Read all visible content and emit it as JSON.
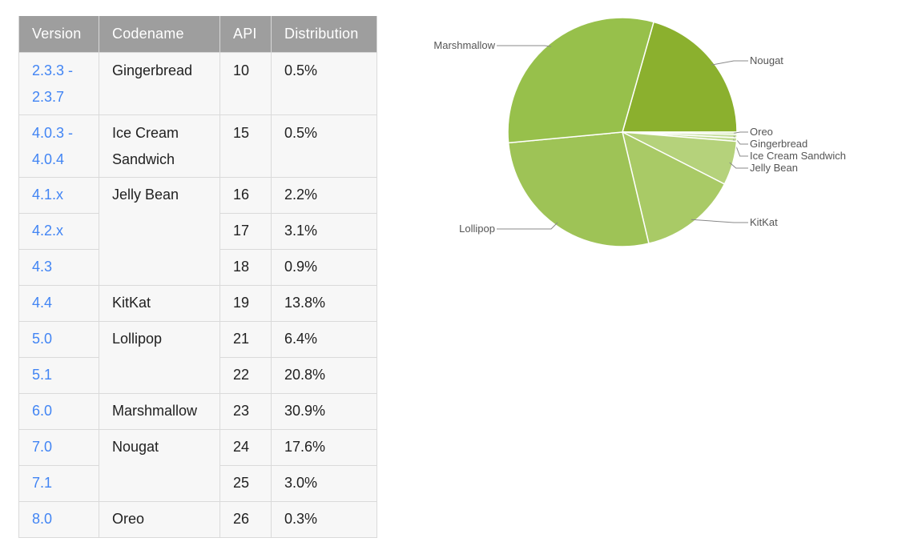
{
  "table": {
    "headers": [
      "Version",
      "Codename",
      "API",
      "Distribution"
    ],
    "rows": [
      {
        "version": "2.3.3 -\n2.3.7",
        "codename": "Gingerbread",
        "api": "10",
        "distribution": "0.5%"
      },
      {
        "version": "4.0.3 -\n4.0.4",
        "codename": "Ice Cream\nSandwich",
        "api": "15",
        "distribution": "0.5%"
      },
      {
        "version": "4.1.x",
        "codename": "Jelly Bean",
        "api": "16",
        "distribution": "2.2%"
      },
      {
        "version": "4.2.x",
        "codename": "",
        "api": "17",
        "distribution": "3.1%"
      },
      {
        "version": "4.3",
        "codename": "",
        "api": "18",
        "distribution": "0.9%"
      },
      {
        "version": "4.4",
        "codename": "KitKat",
        "api": "19",
        "distribution": "13.8%"
      },
      {
        "version": "5.0",
        "codename": "Lollipop",
        "api": "21",
        "distribution": "6.4%"
      },
      {
        "version": "5.1",
        "codename": "",
        "api": "22",
        "distribution": "20.8%"
      },
      {
        "version": "6.0",
        "codename": "Marshmallow",
        "api": "23",
        "distribution": "30.9%"
      },
      {
        "version": "7.0",
        "codename": "Nougat",
        "api": "24",
        "distribution": "17.6%"
      },
      {
        "version": "7.1",
        "codename": "",
        "api": "25",
        "distribution": "3.0%"
      },
      {
        "version": "8.0",
        "codename": "Oreo",
        "api": "26",
        "distribution": "0.3%"
      }
    ]
  },
  "chart_data": {
    "type": "pie",
    "title": "",
    "slices": [
      {
        "label": "Nougat",
        "value": 20.6,
        "color": "#8bb02e"
      },
      {
        "label": "Oreo",
        "value": 0.3,
        "color": "#c9e0a3"
      },
      {
        "label": "Gingerbread",
        "value": 0.5,
        "color": "#c9e0a3"
      },
      {
        "label": "Ice Cream Sandwich",
        "value": 0.5,
        "color": "#c2dc95"
      },
      {
        "label": "Jelly Bean",
        "value": 6.2,
        "color": "#b5d27b"
      },
      {
        "label": "KitKat",
        "value": 13.8,
        "color": "#a9ca66"
      },
      {
        "label": "Lollipop",
        "value": 27.2,
        "color": "#9ec356"
      },
      {
        "label": "Marshmallow",
        "value": 30.9,
        "color": "#97c04b"
      }
    ],
    "legend": "callout labels"
  }
}
